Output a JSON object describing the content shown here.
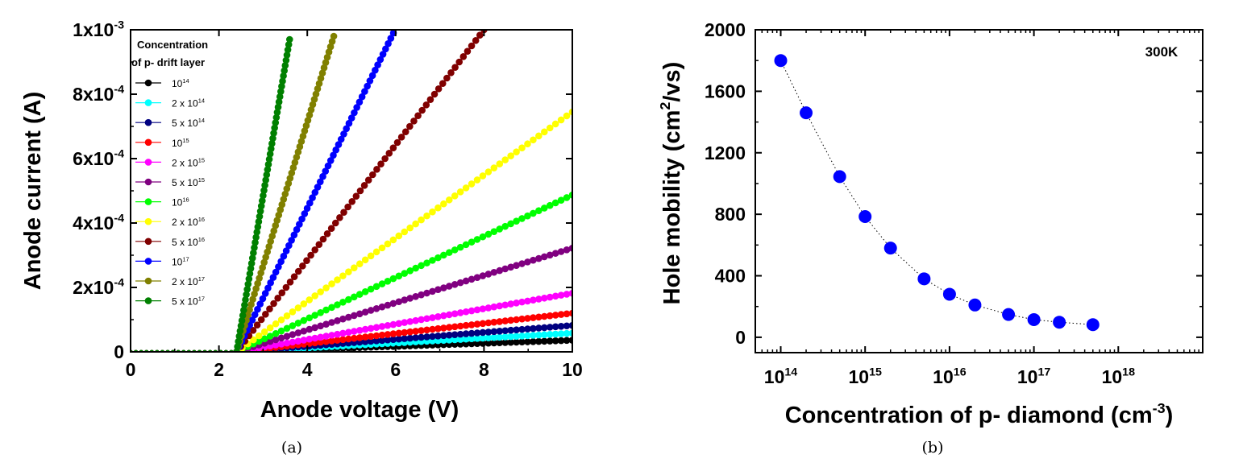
{
  "chart_data": [
    {
      "type": "line",
      "caption": "(a)",
      "xlabel": "Anode voltage (V)",
      "ylabel": "Anode current (A)",
      "xlim": [
        0,
        10
      ],
      "ylim": [
        0,
        0.001
      ],
      "x_ticks": [
        0,
        2,
        4,
        6,
        8,
        10
      ],
      "x_tick_labels": [
        "0",
        "2",
        "4",
        "6",
        "8",
        "10"
      ],
      "y_ticks": [
        0,
        0.0002,
        0.0004,
        0.0006,
        0.0008,
        0.001
      ],
      "y_tick_labels": [
        {
          "mant": "0",
          "exp": ""
        },
        {
          "mant": "2x10",
          "exp": "-4"
        },
        {
          "mant": "4x10",
          "exp": "-4"
        },
        {
          "mant": "6x10",
          "exp": "-4"
        },
        {
          "mant": "8x10",
          "exp": "-4"
        },
        {
          "mant": "1x10",
          "exp": "-3"
        }
      ],
      "legend_title": [
        "Concentration",
        "of p- drift layer"
      ],
      "legend_position": "top-left",
      "threshold_voltage": 2.4,
      "series": [
        {
          "name": "10^14",
          "label_base": "10",
          "label_exp": "14",
          "color": "#000000",
          "x": [
            0,
            2.4,
            10
          ],
          "y": [
            0,
            0,
            3.6e-05
          ]
        },
        {
          "name": "2 x 10^14",
          "label_base": "2 x 10",
          "label_exp": "14",
          "color": "#00ffff",
          "x": [
            0,
            2.4,
            10
          ],
          "y": [
            0,
            0,
            5.8e-05
          ]
        },
        {
          "name": "5 x 10^14",
          "label_base": "5 x 10",
          "label_exp": "14",
          "color": "#000080",
          "x": [
            0,
            2.4,
            10
          ],
          "y": [
            0,
            0,
            8.2e-05
          ]
        },
        {
          "name": "10^15",
          "label_base": "10",
          "label_exp": "15",
          "color": "#ff0000",
          "x": [
            0,
            2.4,
            10
          ],
          "y": [
            0,
            0,
            0.00012
          ]
        },
        {
          "name": "2 x 10^15",
          "label_base": "2 x 10",
          "label_exp": "15",
          "color": "#ff00ff",
          "x": [
            0,
            2.4,
            10
          ],
          "y": [
            0,
            0,
            0.000182
          ]
        },
        {
          "name": "5 x 10^15",
          "label_base": "5 x 10",
          "label_exp": "15",
          "color": "#800080",
          "x": [
            0,
            2.4,
            10
          ],
          "y": [
            0,
            0,
            0.000322
          ]
        },
        {
          "name": "10^16",
          "label_base": "10",
          "label_exp": "16",
          "color": "#00ff00",
          "x": [
            0,
            2.4,
            10
          ],
          "y": [
            0,
            0,
            0.000487
          ]
        },
        {
          "name": "2 x 10^16",
          "label_base": "2 x 10",
          "label_exp": "16",
          "color": "#ffff00",
          "x": [
            0,
            2.4,
            10
          ],
          "y": [
            0,
            0,
            0.000745
          ]
        },
        {
          "name": "5 x 10^16",
          "label_base": "5 x 10",
          "label_exp": "16",
          "color": "#800000",
          "x": [
            0,
            2.4,
            8.0
          ],
          "y": [
            0,
            0,
            0.001
          ]
        },
        {
          "name": "10^17",
          "label_base": "10",
          "label_exp": "17",
          "color": "#0000ff",
          "x": [
            0,
            2.4,
            5.95
          ],
          "y": [
            0,
            0,
            0.00099
          ]
        },
        {
          "name": "2 x 10^17",
          "label_base": "2 x 10",
          "label_exp": "17",
          "color": "#808000",
          "x": [
            0,
            2.4,
            4.6
          ],
          "y": [
            0,
            0,
            0.00098
          ]
        },
        {
          "name": "5 x 10^17",
          "label_base": "5 x 10",
          "label_exp": "17",
          "color": "#008000",
          "x": [
            0,
            2.4,
            3.6
          ],
          "y": [
            0,
            0,
            0.00097
          ]
        }
      ]
    },
    {
      "type": "scatter",
      "caption": "(b)",
      "xlabel_base": "Concentration of p- diamond (cm",
      "xlabel_exp": "-3",
      "xlabel_tail": ")",
      "ylabel_base": "Hole mobility (cm",
      "ylabel_exp": "2",
      "ylabel_tail": "/vs)",
      "annotation": "300K",
      "xscale": "log",
      "xlim": [
        50000000000000,
        10000000000000000000
      ],
      "ylim": [
        -100,
        2000
      ],
      "x_ticks": [
        100000000000000,
        1000000000000000,
        10000000000000000,
        100000000000000000,
        1000000000000000000
      ],
      "x_tick_labels": [
        {
          "base": "10",
          "exp": "14"
        },
        {
          "base": "10",
          "exp": "15"
        },
        {
          "base": "10",
          "exp": "16"
        },
        {
          "base": "10",
          "exp": "17"
        },
        {
          "base": "10",
          "exp": "18"
        }
      ],
      "y_ticks": [
        0,
        400,
        800,
        1200,
        1600,
        2000
      ],
      "y_tick_labels": [
        "0",
        "400",
        "800",
        "1200",
        "1600",
        "2000"
      ],
      "marker_color": "#0000ff",
      "x": [
        100000000000000,
        200000000000000,
        500000000000000,
        1000000000000000,
        2000000000000000,
        5000000000000000,
        10000000000000000,
        20000000000000000,
        50000000000000000,
        100000000000000000,
        200000000000000000,
        500000000000000000
      ],
      "y": [
        1800,
        1460,
        1045,
        785,
        580,
        380,
        280,
        210,
        148,
        115,
        98,
        82
      ]
    }
  ]
}
